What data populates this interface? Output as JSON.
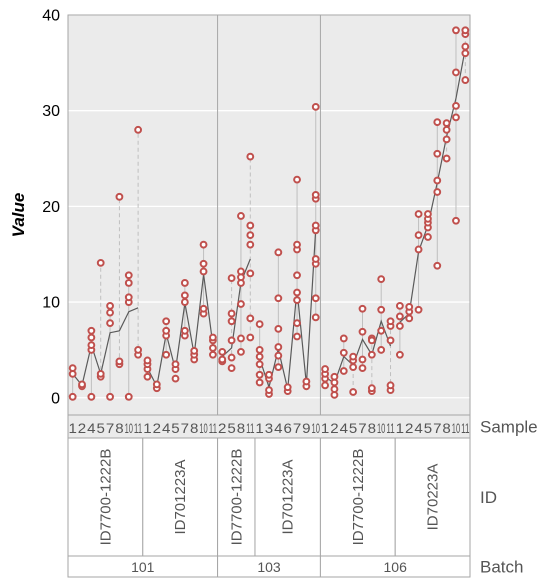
{
  "chart_data": {
    "type": "scatter",
    "ylabel": "Value",
    "yticks": [
      0,
      10,
      20,
      30,
      40
    ],
    "ylim": [
      -1.8,
      40
    ],
    "grid": true,
    "row_labels": {
      "sample": "Sample",
      "id": "ID",
      "batch": "Batch"
    },
    "batches": [
      {
        "name": "101",
        "ids": [
          {
            "name": "ID7700-1222B",
            "samples": [
              {
                "label": "1",
                "points": [
                  0.1,
                  2.5,
                  3.1
                ],
                "median": 2.5
              },
              {
                "label": "2",
                "points": [
                  1.2,
                  1.4
                ],
                "median": 1.3
              },
              {
                "label": "4",
                "points": [
                  0.1,
                  5.0,
                  5.5,
                  6.3,
                  7.0
                ],
                "median": 5.5
              },
              {
                "label": "5",
                "points": [
                  2.2,
                  2.5,
                  14.1
                ],
                "median": 2.5
              },
              {
                "label": "7",
                "points": [
                  0.1,
                  7.8,
                  8.9,
                  9.6
                ],
                "median": 6.8
              },
              {
                "label": "8",
                "points": [
                  3.5,
                  3.8,
                  21.0
                ],
                "median": 7.0
              },
              {
                "label": "10",
                "points": [
                  0.1,
                  10.0,
                  10.5,
                  12.0,
                  12.8
                ],
                "median": 9.0
              },
              {
                "label": "11",
                "points": [
                  4.5,
                  5.0,
                  28.0
                ],
                "median": 9.4
              }
            ]
          },
          {
            "name": "ID701223A",
            "samples": [
              {
                "label": "1",
                "points": [
                  2.2,
                  3.0,
                  3.5,
                  3.9
                ],
                "median": 3.1
              },
              {
                "label": "2",
                "points": [
                  1.0,
                  1.4
                ],
                "median": 1.2
              },
              {
                "label": "4",
                "points": [
                  4.5,
                  6.5,
                  7.0,
                  8.0
                ],
                "median": 6.7
              },
              {
                "label": "5",
                "points": [
                  2.0,
                  3.0,
                  3.5
                ],
                "median": 2.9
              },
              {
                "label": "7",
                "points": [
                  6.5,
                  7.0,
                  10.0,
                  10.7,
                  12.0
                ],
                "median": 9.9
              },
              {
                "label": "8",
                "points": [
                  4.0,
                  4.5,
                  4.9
                ],
                "median": 4.5
              },
              {
                "label": "10",
                "points": [
                  8.8,
                  9.3,
                  13.2,
                  14.0,
                  16.0
                ],
                "median": 12.9
              },
              {
                "label": "11",
                "points": [
                  4.5,
                  5.2,
                  6.0,
                  6.3
                ],
                "median": 5.5
              }
            ]
          }
        ]
      },
      {
        "name": "103",
        "ids": [
          {
            "name": "ID7700-1222B",
            "samples": [
              {
                "label": "2",
                "points": [
                  3.8,
                  4.0,
                  4.8
                ],
                "median": 4.3
              },
              {
                "label": "5",
                "points": [
                  3.1,
                  4.2,
                  6.0,
                  8.0,
                  8.8,
                  12.5
                ],
                "median": 5.2
              },
              {
                "label": "8",
                "points": [
                  4.8,
                  6.2,
                  9.8,
                  12.0,
                  12.6,
                  13.2,
                  19.0
                ],
                "median": 12.1
              },
              {
                "label": "11",
                "points": [
                  6.3,
                  8.3,
                  13.0,
                  16.0,
                  17.0,
                  18.0,
                  25.2
                ],
                "median": 14.5
              }
            ]
          },
          {
            "name": "ID701223A",
            "samples": [
              {
                "label": "1",
                "points": [
                  1.6,
                  2.4,
                  3.5,
                  4.3,
                  5.0,
                  7.7
                ],
                "median": 4.1
              },
              {
                "label": "3",
                "points": [
                  0.4,
                  0.8,
                  2.0,
                  2.4
                ],
                "median": 1.1
              },
              {
                "label": "4",
                "points": [
                  3.2,
                  4.4,
                  5.3,
                  7.2,
                  10.4,
                  15.2
                ],
                "median": 5.1
              },
              {
                "label": "6",
                "points": [
                  0.7,
                  1.1
                ],
                "median": 0.9
              },
              {
                "label": "7",
                "points": [
                  6.4,
                  7.8,
                  10.2,
                  11.0,
                  12.8,
                  15.5,
                  16.0,
                  22.8
                ],
                "median": 11.3
              },
              {
                "label": "9",
                "points": [
                  1.2,
                  1.7
                ],
                "median": 1.4
              },
              {
                "label": "10",
                "points": [
                  8.4,
                  10.4,
                  14.0,
                  14.5,
                  17.5,
                  18.0,
                  20.8,
                  21.2,
                  30.4
                ],
                "median": 17.6
              }
            ]
          }
        ]
      },
      {
        "name": "106",
        "ids": [
          {
            "name": "ID7700-1222B",
            "samples": [
              {
                "label": "1",
                "points": [
                  1.3,
                  2.0,
                  2.5,
                  3.0
                ],
                "median": 2.2
              },
              {
                "label": "2",
                "points": [
                  0.3,
                  0.9,
                  1.6,
                  2.2
                ],
                "median": 1.5
              },
              {
                "label": "4",
                "points": [
                  2.8,
                  4.7,
                  6.2
                ],
                "median": 4.3
              },
              {
                "label": "5",
                "points": [
                  0.6,
                  3.2,
                  3.9,
                  4.3
                ],
                "median": 3.4
              },
              {
                "label": "7",
                "points": [
                  3.1,
                  4.0,
                  6.9,
                  9.3
                ],
                "median": 6.1
              },
              {
                "label": "8",
                "points": [
                  0.7,
                  1.0,
                  4.5,
                  6.2,
                  6.0
                ],
                "median": 4.5
              },
              {
                "label": "10",
                "points": [
                  5.0,
                  7.0,
                  9.2,
                  12.4
                ],
                "median": 8.0
              },
              {
                "label": "11",
                "points": [
                  0.8,
                  1.3,
                  6.0,
                  7.5,
                  8.0
                ],
                "median": 5.4
              }
            ]
          },
          {
            "name": "ID70223A",
            "samples": [
              {
                "label": "1",
                "points": [
                  4.5,
                  7.5,
                  8.5,
                  9.6
                ],
                "median": 7.9
              },
              {
                "label": "2",
                "points": [
                  8.3,
                  9.0,
                  9.5
                ],
                "median": 8.8
              },
              {
                "label": "4",
                "points": [
                  9.2,
                  15.5,
                  17.0,
                  19.2
                ],
                "median": 15.3
              },
              {
                "label": "5",
                "points": [
                  16.8,
                  17.8,
                  18.3,
                  18.7,
                  19.2
                ],
                "median": 18.0
              },
              {
                "label": "7",
                "points": [
                  13.8,
                  21.5,
                  22.7,
                  25.5,
                  28.8
                ],
                "median": 22.5
              },
              {
                "label": "8",
                "points": [
                  25.0,
                  27.0,
                  28.0,
                  28.7
                ],
                "median": 27.3
              },
              {
                "label": "10",
                "points": [
                  18.5,
                  29.3,
                  30.5,
                  34.0,
                  38.4
                ],
                "median": 31.3
              },
              {
                "label": "11",
                "points": [
                  33.2,
                  36.0,
                  36.7,
                  38.0,
                  38.4
                ],
                "median": 36.5
              }
            ]
          }
        ]
      }
    ]
  },
  "colors": {
    "panel_bg": "#ebebeb",
    "grid": "#ffffff",
    "point": "#c0504d",
    "median_line": "#5a5a5a",
    "range_line": "#bfbfbf",
    "border": "#a6a6a6"
  }
}
